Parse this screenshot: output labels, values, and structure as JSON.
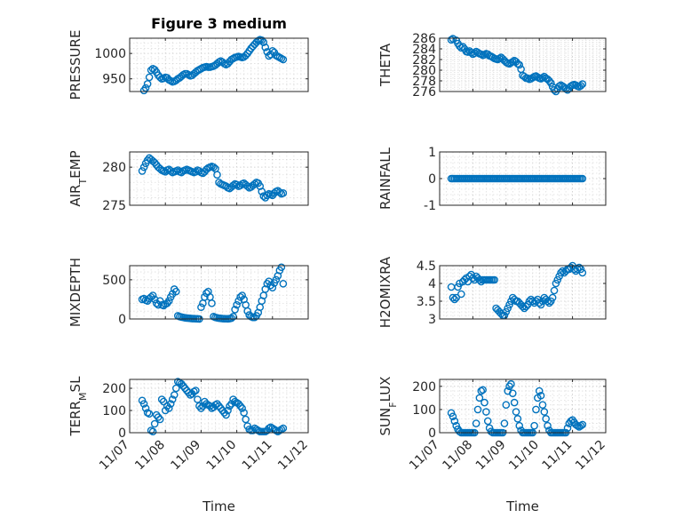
{
  "chart_data": [
    {
      "type": "scatter",
      "title": "Figure 3 medium",
      "ylabel": "PRESSURE",
      "ylim": [
        925,
        1030
      ],
      "yticks": [
        "950",
        "1000"
      ],
      "ytick_values": [
        950,
        1000
      ],
      "x": [
        7.35,
        7.4,
        7.45,
        7.5,
        7.55,
        7.6,
        7.65,
        7.7,
        7.75,
        7.8,
        7.85,
        7.9,
        7.95,
        8.0,
        8.05,
        8.1,
        8.15,
        8.2,
        8.25,
        8.3,
        8.35,
        8.4,
        8.45,
        8.5,
        8.55,
        8.6,
        8.65,
        8.7,
        8.75,
        8.8,
        8.85,
        8.9,
        8.95,
        9.0,
        9.05,
        9.1,
        9.15,
        9.2,
        9.25,
        9.3,
        9.35,
        9.4,
        9.45,
        9.5,
        9.55,
        9.6,
        9.65,
        9.7,
        9.75,
        9.8,
        9.85,
        9.9,
        9.95,
        10.0,
        10.05,
        10.1,
        10.15,
        10.2,
        10.25,
        10.3,
        10.35,
        10.4,
        10.45,
        10.5,
        10.55,
        10.6,
        10.65,
        10.7,
        10.75,
        10.8,
        10.85,
        10.9,
        10.95,
        11.0,
        11.05,
        11.1,
        11.15,
        11.2,
        11.25,
        11.3
      ],
      "y": [
        923,
        927,
        932,
        940,
        953,
        967,
        970,
        968,
        963,
        957,
        953,
        950,
        951,
        953,
        952,
        948,
        946,
        944,
        945,
        947,
        950,
        952,
        955,
        958,
        960,
        960,
        958,
        956,
        957,
        960,
        963,
        966,
        968,
        970,
        972,
        973,
        974,
        973,
        973,
        974,
        975,
        977,
        980,
        983,
        985,
        983,
        980,
        978,
        980,
        984,
        988,
        990,
        992,
        993,
        994,
        993,
        992,
        993,
        996,
        1000,
        1005,
        1010,
        1014,
        1018,
        1022,
        1025,
        1027,
        1026,
        1022,
        1012,
        1003,
        995,
        998,
        1005,
        1002,
        996,
        994,
        992,
        990,
        988
      ]
    },
    {
      "type": "scatter",
      "ylabel": "THETA",
      "ylim": [
        276,
        286
      ],
      "yticks": [
        "276",
        "278",
        "280",
        "282",
        "284",
        "286"
      ],
      "ytick_values": [
        276,
        278,
        280,
        282,
        284,
        286
      ],
      "x": [
        7.35,
        7.4,
        7.45,
        7.5,
        7.55,
        7.6,
        7.65,
        7.7,
        7.75,
        7.8,
        7.85,
        7.9,
        7.95,
        8.0,
        8.05,
        8.1,
        8.15,
        8.2,
        8.25,
        8.3,
        8.35,
        8.4,
        8.45,
        8.5,
        8.55,
        8.6,
        8.65,
        8.7,
        8.75,
        8.8,
        8.85,
        8.9,
        8.95,
        9.0,
        9.05,
        9.1,
        9.15,
        9.2,
        9.25,
        9.3,
        9.35,
        9.4,
        9.45,
        9.5,
        9.55,
        9.6,
        9.65,
        9.7,
        9.75,
        9.8,
        9.85,
        9.9,
        9.95,
        10.0,
        10.05,
        10.1,
        10.15,
        10.2,
        10.25,
        10.3,
        10.35,
        10.4,
        10.45,
        10.5,
        10.55,
        10.6,
        10.65,
        10.7,
        10.75,
        10.8,
        10.85,
        10.9,
        10.95,
        11.0,
        11.05,
        11.1,
        11.15,
        11.2,
        11.25,
        11.3
      ],
      "y": [
        285.7,
        285.9,
        286.2,
        285.6,
        285.0,
        284.5,
        284.2,
        284.4,
        284.0,
        283.5,
        283.4,
        283.6,
        283.3,
        283.0,
        283.2,
        283.5,
        283.3,
        283.1,
        283.0,
        282.8,
        282.9,
        283.1,
        283.0,
        282.7,
        282.6,
        282.4,
        282.2,
        282.1,
        282.0,
        282.2,
        282.4,
        282.1,
        281.8,
        281.5,
        281.3,
        281.2,
        281.4,
        281.6,
        281.8,
        281.6,
        281.2,
        281.0,
        280.2,
        279.0,
        278.8,
        278.5,
        278.5,
        278.3,
        278.4,
        278.6,
        278.8,
        278.9,
        278.7,
        278.5,
        278.4,
        278.6,
        278.8,
        278.5,
        278.3,
        278.0,
        277.6,
        276.9,
        276.3,
        276.0,
        276.5,
        277.0,
        277.2,
        277.0,
        276.8,
        276.5,
        276.3,
        276.6,
        277.0,
        277.2,
        277.3,
        277.2,
        277.0,
        276.9,
        277.1,
        277.4
      ]
    },
    {
      "type": "scatter",
      "ylabel": "AIR_TEMP",
      "ylim": [
        275,
        282
      ],
      "yticks": [
        "275",
        "280"
      ],
      "ytick_values": [
        275,
        280
      ],
      "x": [
        7.35,
        7.4,
        7.45,
        7.5,
        7.55,
        7.6,
        7.65,
        7.7,
        7.75,
        7.8,
        7.85,
        7.9,
        7.95,
        8.0,
        8.05,
        8.1,
        8.15,
        8.2,
        8.25,
        8.3,
        8.35,
        8.4,
        8.45,
        8.5,
        8.55,
        8.6,
        8.65,
        8.7,
        8.75,
        8.8,
        8.85,
        8.9,
        8.95,
        9.0,
        9.05,
        9.1,
        9.15,
        9.2,
        9.25,
        9.3,
        9.35,
        9.4,
        9.45,
        9.5,
        9.55,
        9.6,
        9.65,
        9.7,
        9.75,
        9.8,
        9.85,
        9.9,
        9.95,
        10.0,
        10.05,
        10.1,
        10.15,
        10.2,
        10.25,
        10.3,
        10.35,
        10.4,
        10.45,
        10.5,
        10.55,
        10.6,
        10.65,
        10.7,
        10.75,
        10.8,
        10.85,
        10.9,
        10.95,
        11.0,
        11.05,
        11.1,
        11.15,
        11.2,
        11.25,
        11.3
      ],
      "y": [
        279.5,
        280.0,
        280.5,
        280.9,
        281.2,
        281.0,
        280.8,
        280.6,
        280.3,
        280.0,
        279.8,
        279.6,
        279.5,
        279.4,
        279.6,
        279.7,
        279.5,
        279.3,
        279.4,
        279.5,
        279.6,
        279.4,
        279.3,
        279.5,
        279.6,
        279.7,
        279.6,
        279.5,
        279.4,
        279.3,
        279.4,
        279.6,
        279.5,
        279.3,
        279.2,
        279.4,
        279.7,
        279.9,
        280.0,
        280.1,
        280.0,
        279.8,
        279.0,
        278.0,
        277.8,
        277.7,
        277.6,
        277.5,
        277.3,
        277.2,
        277.4,
        277.6,
        277.8,
        277.7,
        277.5,
        277.6,
        277.8,
        277.9,
        277.7,
        277.5,
        277.3,
        277.4,
        277.6,
        277.8,
        278.0,
        277.9,
        277.5,
        276.8,
        276.2,
        276.0,
        276.3,
        276.5,
        276.4,
        276.3,
        276.6,
        276.8,
        276.9,
        276.7,
        276.5,
        276.6
      ]
    },
    {
      "type": "scatter",
      "ylabel": "RAINFALL",
      "ylim": [
        -1,
        1
      ],
      "yticks": [
        "-1",
        "0",
        "1"
      ],
      "ytick_values": [
        -1,
        0,
        1
      ],
      "x": [
        7.35,
        7.4,
        7.45,
        7.5,
        7.55,
        7.6,
        7.65,
        7.7,
        7.75,
        7.8,
        7.85,
        7.9,
        7.95,
        8.0,
        8.05,
        8.1,
        8.15,
        8.2,
        8.25,
        8.3,
        8.35,
        8.4,
        8.45,
        8.5,
        8.55,
        8.6,
        8.65,
        8.7,
        8.75,
        8.8,
        8.85,
        8.9,
        8.95,
        9.0,
        9.05,
        9.1,
        9.15,
        9.2,
        9.25,
        9.3,
        9.35,
        9.4,
        9.45,
        9.5,
        9.55,
        9.6,
        9.65,
        9.7,
        9.75,
        9.8,
        9.85,
        9.9,
        9.95,
        10.0,
        10.05,
        10.1,
        10.15,
        10.2,
        10.25,
        10.3,
        10.35,
        10.4,
        10.45,
        10.5,
        10.55,
        10.6,
        10.65,
        10.7,
        10.75,
        10.8,
        10.85,
        10.9,
        10.95,
        11.0,
        11.05,
        11.1,
        11.15,
        11.2,
        11.25,
        11.3
      ],
      "y": [
        0,
        0,
        0,
        0,
        0,
        0,
        0,
        0,
        0,
        0,
        0,
        0,
        0,
        0,
        0,
        0,
        0,
        0,
        0,
        0,
        0,
        0,
        0,
        0,
        0,
        0,
        0,
        0,
        0,
        0,
        0,
        0,
        0,
        0,
        0,
        0,
        0,
        0,
        0,
        0,
        0,
        0,
        0,
        0,
        0,
        0,
        0,
        0,
        0,
        0,
        0,
        0,
        0,
        0,
        0,
        0,
        0,
        0,
        0,
        0,
        0,
        0,
        0,
        0,
        0,
        0,
        0,
        0,
        0,
        0,
        0,
        0,
        0,
        0,
        0,
        0,
        0,
        0,
        0,
        0
      ]
    },
    {
      "type": "scatter",
      "ylabel": "MIXDEPTH",
      "ylim": [
        0,
        680
      ],
      "yticks": [
        "0",
        "500"
      ],
      "ytick_values": [
        0,
        500
      ],
      "x": [
        7.35,
        7.4,
        7.45,
        7.5,
        7.55,
        7.6,
        7.65,
        7.7,
        7.75,
        7.8,
        7.85,
        7.9,
        7.95,
        8.0,
        8.05,
        8.1,
        8.15,
        8.2,
        8.25,
        8.3,
        8.35,
        8.4,
        8.45,
        8.5,
        8.55,
        8.6,
        8.65,
        8.7,
        8.75,
        8.8,
        8.85,
        8.9,
        8.95,
        9.0,
        9.05,
        9.1,
        9.15,
        9.2,
        9.25,
        9.3,
        9.35,
        9.4,
        9.45,
        9.5,
        9.55,
        9.6,
        9.65,
        9.7,
        9.75,
        9.8,
        9.85,
        9.9,
        9.95,
        10.0,
        10.05,
        10.1,
        10.15,
        10.2,
        10.25,
        10.3,
        10.35,
        10.4,
        10.45,
        10.5,
        10.55,
        10.6,
        10.65,
        10.7,
        10.75,
        10.8,
        10.85,
        10.9,
        10.95,
        11.0,
        11.05,
        11.1,
        11.15,
        11.2,
        11.25,
        11.3
      ],
      "y": [
        250,
        260,
        240,
        230,
        260,
        280,
        300,
        250,
        200,
        180,
        230,
        180,
        170,
        190,
        200,
        230,
        280,
        320,
        380,
        350,
        40,
        30,
        25,
        20,
        15,
        12,
        10,
        8,
        5,
        5,
        3,
        2,
        0,
        150,
        200,
        280,
        330,
        350,
        280,
        200,
        30,
        20,
        15,
        10,
        8,
        5,
        4,
        3,
        2,
        5,
        10,
        30,
        120,
        180,
        230,
        280,
        300,
        250,
        180,
        100,
        50,
        30,
        20,
        20,
        40,
        80,
        150,
        230,
        300,
        380,
        450,
        480,
        430,
        400,
        460,
        500,
        550,
        620,
        660,
        450
      ]
    },
    {
      "type": "scatter",
      "ylabel": "H2OMIXRA",
      "ylim": [
        3,
        4.5
      ],
      "yticks": [
        "3",
        "3.5",
        "4",
        "4.5"
      ],
      "ytick_values": [
        3,
        3.5,
        4,
        4.5
      ],
      "x": [
        7.35,
        7.4,
        7.45,
        7.5,
        7.55,
        7.6,
        7.65,
        7.7,
        7.75,
        7.8,
        7.85,
        7.9,
        7.95,
        8.0,
        8.05,
        8.1,
        8.15,
        8.2,
        8.25,
        8.3,
        8.35,
        8.4,
        8.45,
        8.5,
        8.55,
        8.6,
        8.65,
        8.7,
        8.75,
        8.8,
        8.85,
        8.9,
        8.95,
        9.0,
        9.05,
        9.1,
        9.15,
        9.2,
        9.25,
        9.3,
        9.35,
        9.4,
        9.45,
        9.5,
        9.55,
        9.6,
        9.65,
        9.7,
        9.75,
        9.8,
        9.85,
        9.9,
        9.95,
        10.0,
        10.05,
        10.1,
        10.15,
        10.2,
        10.25,
        10.3,
        10.35,
        10.4,
        10.45,
        10.5,
        10.55,
        10.6,
        10.65,
        10.7,
        10.75,
        10.8,
        10.85,
        10.9,
        10.95,
        11.0,
        11.05,
        11.1,
        11.15,
        11.2,
        11.25,
        11.3
      ],
      "y": [
        3.9,
        3.6,
        3.55,
        3.6,
        3.9,
        4.0,
        3.7,
        4.05,
        4.1,
        4.15,
        4.05,
        4.2,
        4.25,
        4.15,
        4.1,
        4.2,
        4.15,
        4.1,
        4.05,
        4.1,
        4.1,
        4.1,
        4.1,
        4.1,
        4.1,
        4.1,
        4.1,
        3.3,
        3.25,
        3.2,
        3.15,
        3.1,
        3.1,
        3.2,
        3.3,
        3.4,
        3.5,
        3.6,
        3.55,
        3.5,
        3.5,
        3.45,
        3.4,
        3.35,
        3.3,
        3.35,
        3.4,
        3.5,
        3.55,
        3.5,
        3.45,
        3.5,
        3.55,
        3.45,
        3.4,
        3.5,
        3.6,
        3.55,
        3.5,
        3.45,
        3.5,
        3.6,
        3.8,
        4.0,
        4.1,
        4.2,
        4.3,
        4.35,
        4.3,
        4.35,
        4.4,
        4.4,
        4.45,
        4.5,
        4.4,
        4.35,
        4.4,
        4.45,
        4.4,
        4.3
      ]
    },
    {
      "type": "scatter",
      "ylabel": "TERR_MSL",
      "ylim": [
        0,
        240
      ],
      "yticks": [
        "0",
        "100",
        "200"
      ],
      "ytick_values": [
        0,
        100,
        200
      ],
      "x": [
        7.35,
        7.4,
        7.45,
        7.5,
        7.55,
        7.6,
        7.65,
        7.7,
        7.75,
        7.8,
        7.85,
        7.9,
        7.95,
        8.0,
        8.05,
        8.1,
        8.15,
        8.2,
        8.25,
        8.3,
        8.35,
        8.4,
        8.45,
        8.5,
        8.55,
        8.6,
        8.65,
        8.7,
        8.75,
        8.8,
        8.85,
        8.9,
        8.95,
        9.0,
        9.05,
        9.1,
        9.15,
        9.2,
        9.25,
        9.3,
        9.35,
        9.4,
        9.45,
        9.5,
        9.55,
        9.6,
        9.65,
        9.7,
        9.75,
        9.8,
        9.85,
        9.9,
        9.95,
        10.0,
        10.05,
        10.1,
        10.15,
        10.2,
        10.25,
        10.3,
        10.35,
        10.4,
        10.45,
        10.5,
        10.55,
        10.6,
        10.65,
        10.7,
        10.75,
        10.8,
        10.85,
        10.9,
        10.95,
        11.0,
        11.05,
        11.1,
        11.15,
        11.2,
        11.25,
        11.3
      ],
      "y": [
        145,
        130,
        110,
        90,
        85,
        10,
        5,
        40,
        80,
        70,
        60,
        150,
        140,
        100,
        120,
        110,
        130,
        150,
        170,
        200,
        230,
        225,
        220,
        210,
        200,
        190,
        180,
        170,
        175,
        185,
        190,
        150,
        120,
        110,
        120,
        140,
        130,
        125,
        120,
        110,
        115,
        125,
        130,
        120,
        110,
        100,
        90,
        80,
        100,
        120,
        130,
        150,
        140,
        135,
        130,
        120,
        110,
        90,
        60,
        30,
        15,
        10,
        10,
        20,
        15,
        10,
        5,
        5,
        5,
        5,
        10,
        20,
        25,
        20,
        15,
        10,
        5,
        10,
        15,
        20
      ]
    },
    {
      "type": "scatter",
      "ylabel": "SUN_FLUX",
      "ylim": [
        0,
        230
      ],
      "yticks": [
        "0",
        "100",
        "200"
      ],
      "ytick_values": [
        0,
        100,
        200
      ],
      "xlabel": "Time",
      "xticks": [
        "11/07",
        "11/08",
        "11/09",
        "11/10",
        "11/11",
        "11/12"
      ],
      "xtick_values": [
        7,
        8,
        9,
        10,
        11,
        12
      ],
      "x": [
        7.35,
        7.4,
        7.45,
        7.5,
        7.55,
        7.6,
        7.65,
        7.7,
        7.75,
        7.8,
        7.85,
        7.9,
        7.95,
        8.0,
        8.05,
        8.1,
        8.15,
        8.2,
        8.25,
        8.3,
        8.35,
        8.4,
        8.45,
        8.5,
        8.55,
        8.6,
        8.65,
        8.7,
        8.75,
        8.8,
        8.85,
        8.9,
        8.95,
        9.0,
        9.05,
        9.1,
        9.15,
        9.2,
        9.25,
        9.3,
        9.35,
        9.4,
        9.45,
        9.5,
        9.55,
        9.6,
        9.65,
        9.7,
        9.75,
        9.8,
        9.85,
        9.9,
        9.95,
        10.0,
        10.05,
        10.1,
        10.15,
        10.2,
        10.25,
        10.3,
        10.35,
        10.4,
        10.45,
        10.5,
        10.55,
        10.6,
        10.65,
        10.7,
        10.75,
        10.8,
        10.85,
        10.9,
        10.95,
        11.0,
        11.05,
        11.1,
        11.15,
        11.2,
        11.25,
        11.3
      ],
      "y": [
        85,
        70,
        50,
        30,
        15,
        5,
        0,
        0,
        0,
        0,
        0,
        0,
        0,
        0,
        0,
        40,
        100,
        150,
        180,
        185,
        130,
        90,
        50,
        20,
        5,
        0,
        0,
        0,
        0,
        0,
        0,
        0,
        40,
        120,
        180,
        200,
        210,
        170,
        130,
        90,
        60,
        30,
        10,
        0,
        0,
        0,
        0,
        0,
        0,
        0,
        30,
        100,
        150,
        180,
        160,
        120,
        90,
        60,
        30,
        10,
        0,
        0,
        0,
        0,
        0,
        0,
        0,
        0,
        0,
        0,
        20,
        40,
        50,
        55,
        45,
        35,
        30,
        25,
        30,
        35
      ]
    }
  ]
}
